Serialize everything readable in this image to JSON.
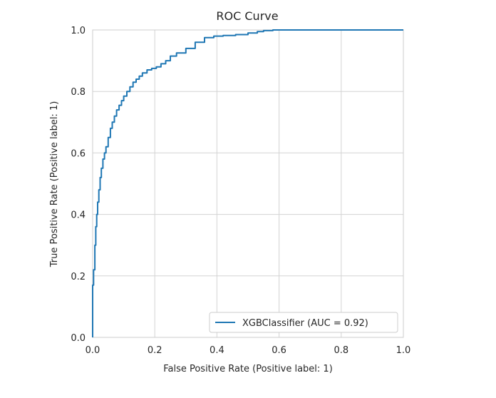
{
  "chart_data": {
    "type": "line",
    "title": "ROC Curve",
    "xlabel": "False Positive Rate (Positive label: 1)",
    "ylabel": "True Positive Rate (Positive label: 1)",
    "xlim": [
      0.0,
      1.0
    ],
    "ylim": [
      0.0,
      1.0
    ],
    "xticks": [
      "0.0",
      "0.2",
      "0.4",
      "0.6",
      "0.8",
      "1.0"
    ],
    "yticks": [
      "0.0",
      "0.2",
      "0.4",
      "0.6",
      "0.8",
      "1.0"
    ],
    "grid": true,
    "legend_position": "lower-right",
    "series": [
      {
        "name": "XGBClassifier (AUC = 0.92)",
        "color": "#1f77b4",
        "x": [
          0.0,
          0.0,
          0.003,
          0.003,
          0.007,
          0.007,
          0.01,
          0.01,
          0.013,
          0.013,
          0.016,
          0.016,
          0.02,
          0.02,
          0.024,
          0.024,
          0.028,
          0.028,
          0.033,
          0.033,
          0.038,
          0.038,
          0.043,
          0.043,
          0.05,
          0.05,
          0.057,
          0.057,
          0.063,
          0.063,
          0.07,
          0.07,
          0.077,
          0.077,
          0.085,
          0.085,
          0.093,
          0.093,
          0.1,
          0.1,
          0.11,
          0.11,
          0.12,
          0.12,
          0.13,
          0.13,
          0.14,
          0.14,
          0.15,
          0.15,
          0.16,
          0.16,
          0.175,
          0.175,
          0.19,
          0.19,
          0.205,
          0.205,
          0.22,
          0.22,
          0.235,
          0.235,
          0.25,
          0.25,
          0.27,
          0.27,
          0.3,
          0.3,
          0.33,
          0.33,
          0.36,
          0.36,
          0.39,
          0.39,
          0.42,
          0.42,
          0.46,
          0.46,
          0.5,
          0.5,
          0.53,
          0.53,
          0.55,
          0.55,
          0.58,
          0.58,
          0.7,
          0.85,
          1.0
        ],
        "y": [
          0.0,
          0.17,
          0.17,
          0.22,
          0.22,
          0.3,
          0.3,
          0.36,
          0.36,
          0.4,
          0.4,
          0.44,
          0.44,
          0.48,
          0.48,
          0.52,
          0.52,
          0.55,
          0.55,
          0.58,
          0.58,
          0.6,
          0.6,
          0.62,
          0.62,
          0.65,
          0.65,
          0.68,
          0.68,
          0.7,
          0.7,
          0.72,
          0.72,
          0.74,
          0.74,
          0.755,
          0.755,
          0.77,
          0.77,
          0.785,
          0.785,
          0.8,
          0.8,
          0.815,
          0.815,
          0.83,
          0.83,
          0.84,
          0.84,
          0.85,
          0.85,
          0.86,
          0.86,
          0.87,
          0.87,
          0.875,
          0.875,
          0.88,
          0.88,
          0.89,
          0.89,
          0.9,
          0.9,
          0.915,
          0.915,
          0.925,
          0.925,
          0.94,
          0.94,
          0.96,
          0.96,
          0.975,
          0.975,
          0.98,
          0.98,
          0.982,
          0.982,
          0.985,
          0.985,
          0.99,
          0.99,
          0.995,
          0.995,
          0.998,
          0.998,
          1.0,
          1.0,
          1.0,
          1.0
        ]
      }
    ]
  }
}
